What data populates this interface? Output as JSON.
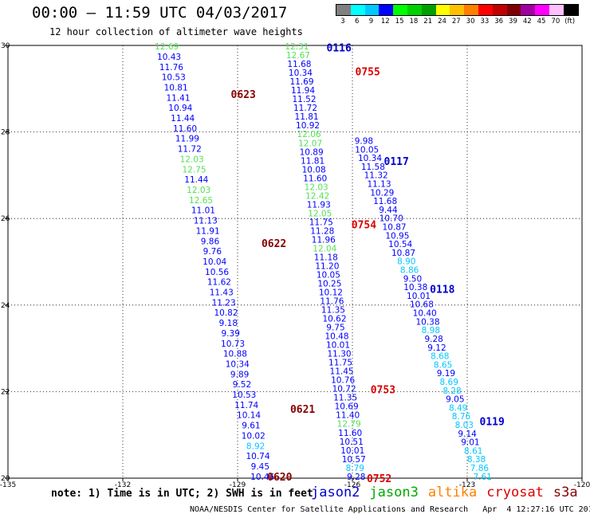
{
  "header": {
    "title": "00:00 – 11:59 UTC 04/03/2017",
    "subtitle": "12 hour collection of altimeter wave heights"
  },
  "legend": {
    "unit_label": "(ft)",
    "bins": [
      {
        "label": "3",
        "color": "#808080"
      },
      {
        "label": "6",
        "color": "#00ffff"
      },
      {
        "label": "9",
        "color": "#00c8ff"
      },
      {
        "label": "12",
        "color": "#0000ff"
      },
      {
        "label": "15",
        "color": "#00ff00"
      },
      {
        "label": "18",
        "color": "#00d000"
      },
      {
        "label": "21",
        "color": "#00a000"
      },
      {
        "label": "24",
        "color": "#ffff00"
      },
      {
        "label": "27",
        "color": "#ffc000"
      },
      {
        "label": "30",
        "color": "#ff8000"
      },
      {
        "label": "33",
        "color": "#ff0000"
      },
      {
        "label": "36",
        "color": "#c00000"
      },
      {
        "label": "39",
        "color": "#800000"
      },
      {
        "label": "42",
        "color": "#a000a0"
      },
      {
        "label": "45",
        "color": "#ff00ff"
      },
      {
        "label": "70",
        "color": "#ffc0ff"
      },
      {
        "label": "",
        "color": "#000000"
      }
    ]
  },
  "footer": {
    "note": "note: 1) Time is in UTC; 2) SWH is in feet",
    "satellites": [
      {
        "name": "jason2",
        "color": "#0000cc"
      },
      {
        "name": "jason3",
        "color": "#00aa00"
      },
      {
        "name": "altika",
        "color": "#ff8000"
      },
      {
        "name": "cryosat",
        "color": "#dd0000"
      },
      {
        "name": "s3a",
        "color": "#880000"
      }
    ],
    "credit": "NOAA/NESDIS Center for Satellite Applications and Research   Apr  4 12:27:16 UTC 2017"
  },
  "chart_data": {
    "type": "scatter",
    "xlim": [
      -135,
      -120
    ],
    "ylim": [
      20,
      30
    ],
    "grid": true,
    "x_ticks": [
      "-135",
      "-132",
      "-129",
      "-126",
      "-123",
      "-120"
    ],
    "y_ticks": [
      "20",
      "22",
      "24",
      "26",
      "28",
      "30"
    ],
    "tracks": [
      {
        "values": [
          "12.69",
          "10.43",
          "11.76",
          "10.53",
          "10.81",
          "11.41",
          "10.94",
          "11.44",
          "11.60",
          "11.99",
          "11.72",
          "12.03",
          "12.75",
          "11.44",
          "12.03",
          "12.65",
          "11.01",
          "11.13",
          "11.91",
          "9.86",
          "9.76",
          "10.04",
          "10.56",
          "11.62",
          "11.43",
          "11.23",
          "10.82",
          "9.18",
          "9.39",
          "10.73",
          "10.88",
          "10.34",
          "9.89",
          "9.52",
          "10.53",
          "11.74",
          "10.14",
          "9.61",
          "10.02",
          "8.92",
          "10.74",
          "9.45",
          "10.46"
        ],
        "lon_start": -130.85,
        "lon_end": -128.35
      },
      {
        "values": [
          "12.31",
          "12.67",
          "11.68",
          "10.34",
          "11.69",
          "11.94",
          "11.52",
          "11.72",
          "11.81",
          "10.92",
          "12.06",
          "12.07",
          "10.89",
          "11.81",
          "10.08",
          "11.60",
          "12.03",
          "12.42",
          "11.93",
          "12.05",
          "11.75",
          "11.28",
          "11.96",
          "12.04",
          "11.18",
          "11.20",
          "10.05",
          "10.25",
          "10.12",
          "11.76",
          "11.35",
          "10.62",
          "9.75",
          "10.48",
          "10.01",
          "11.30",
          "11.75",
          "11.45",
          "10.76",
          "10.72",
          "11.35",
          "10.69",
          "11.40",
          "12.79",
          "11.60",
          "10.51",
          "10.01",
          "10.57",
          "8.79",
          "9.28"
        ],
        "lon_start": -127.45,
        "lon_end": -125.9
      },
      {
        "values": [
          "9.98",
          "10.05",
          "10.34",
          "11.58",
          "11.32",
          "11.13",
          "10.29",
          "11.68",
          "9.44",
          "10.70",
          "10.87",
          "10.95",
          "10.54",
          "10.87",
          "8.90",
          "8.86",
          "9.50",
          "10.38",
          "10.01",
          "10.68",
          "10.40",
          "10.38",
          "8.98",
          "9.28",
          "9.12",
          "8.68",
          "8.65",
          "9.19",
          "8.69",
          "8.28",
          "9.05",
          "8.49",
          "8.76",
          "8.03",
          "9.14",
          "9.01",
          "8.61",
          "8.38",
          "7.86",
          "7.61"
        ],
        "lon_start": -125.7,
        "lon_end": -122.6
      }
    ],
    "passes": [
      {
        "label": "0116",
        "lon": -126.35,
        "lat": 29.95
      },
      {
        "label": "0755",
        "lon": -125.6,
        "lat": 29.4
      },
      {
        "label": "0623",
        "lon": -128.85,
        "lat": 28.88
      },
      {
        "label": "0117",
        "lon": -124.85,
        "lat": 27.33
      },
      {
        "label": "0754",
        "lon": -125.7,
        "lat": 25.87
      },
      {
        "label": "0622",
        "lon": -128.05,
        "lat": 25.43
      },
      {
        "label": "0118",
        "lon": -123.65,
        "lat": 24.37
      },
      {
        "label": "0753",
        "lon": -125.2,
        "lat": 22.05
      },
      {
        "label": "0621",
        "lon": -127.3,
        "lat": 21.6
      },
      {
        "label": "0119",
        "lon": -122.35,
        "lat": 21.32
      },
      {
        "label": "0620",
        "lon": -127.9,
        "lat": 20.04
      },
      {
        "label": "0752",
        "lon": -125.3,
        "lat": 20.0
      }
    ]
  }
}
